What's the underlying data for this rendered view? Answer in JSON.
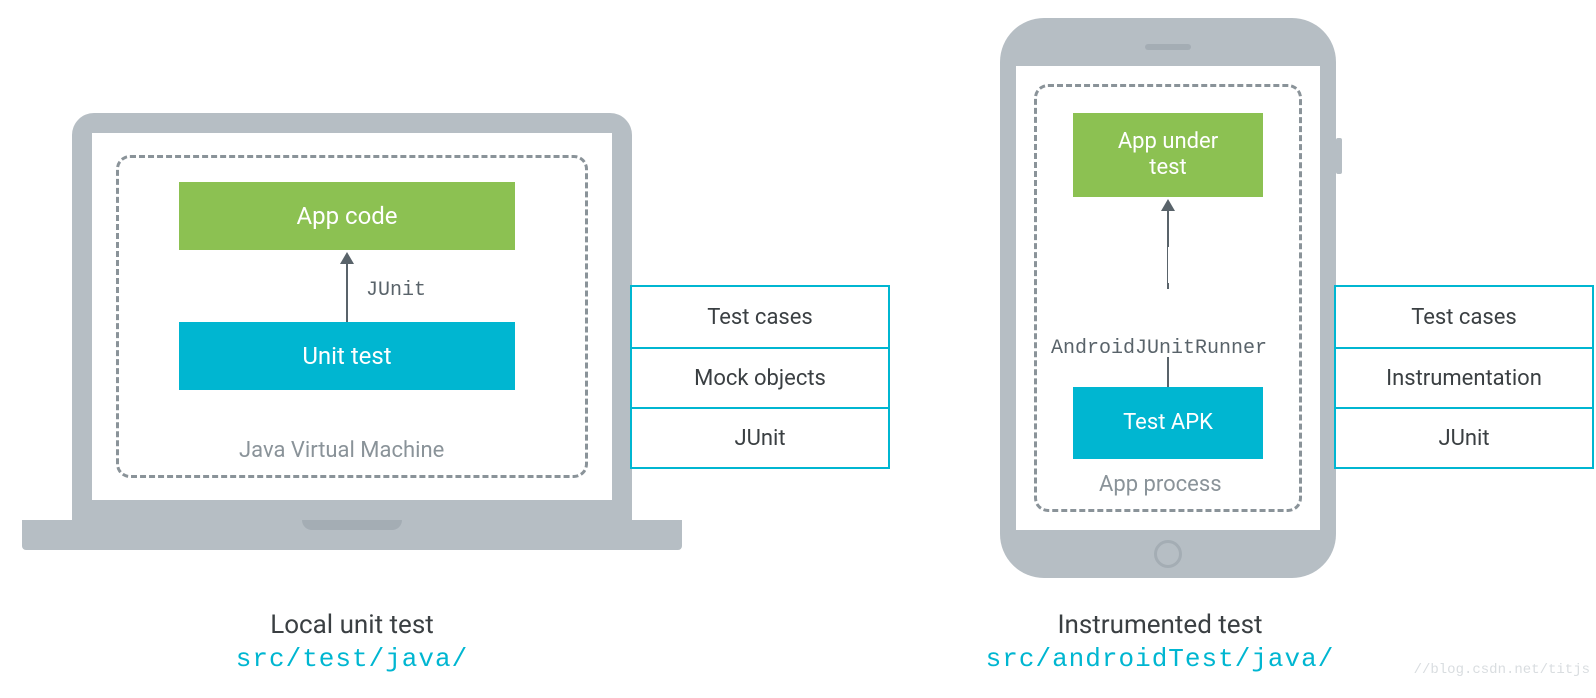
{
  "colors": {
    "green": "#8cc152",
    "cyan": "#00b6d1",
    "device": "#b6bec4",
    "dash": "#8a9399",
    "text": "#3a3f42",
    "arrow": "#59636a"
  },
  "laptop": {
    "container_label": "Java Virtual Machine",
    "top_box": "App code",
    "bottom_box": "Unit test",
    "arrow_label": "JUnit",
    "callout": [
      "Test cases",
      "Mock objects",
      "JUnit"
    ],
    "caption_title": "Local unit test",
    "caption_path": "src/test/java/"
  },
  "phone": {
    "container_label": "App process",
    "top_box": "App under\ntest",
    "bottom_box": "Test APK",
    "arrow_label": "AndroidJUnitRunner",
    "callout": [
      "Test cases",
      "Instrumentation",
      "JUnit"
    ],
    "caption_title": "Instrumented test",
    "caption_path": "src/androidTest/java/"
  },
  "watermark": "//blog.csdn.net/titjs"
}
